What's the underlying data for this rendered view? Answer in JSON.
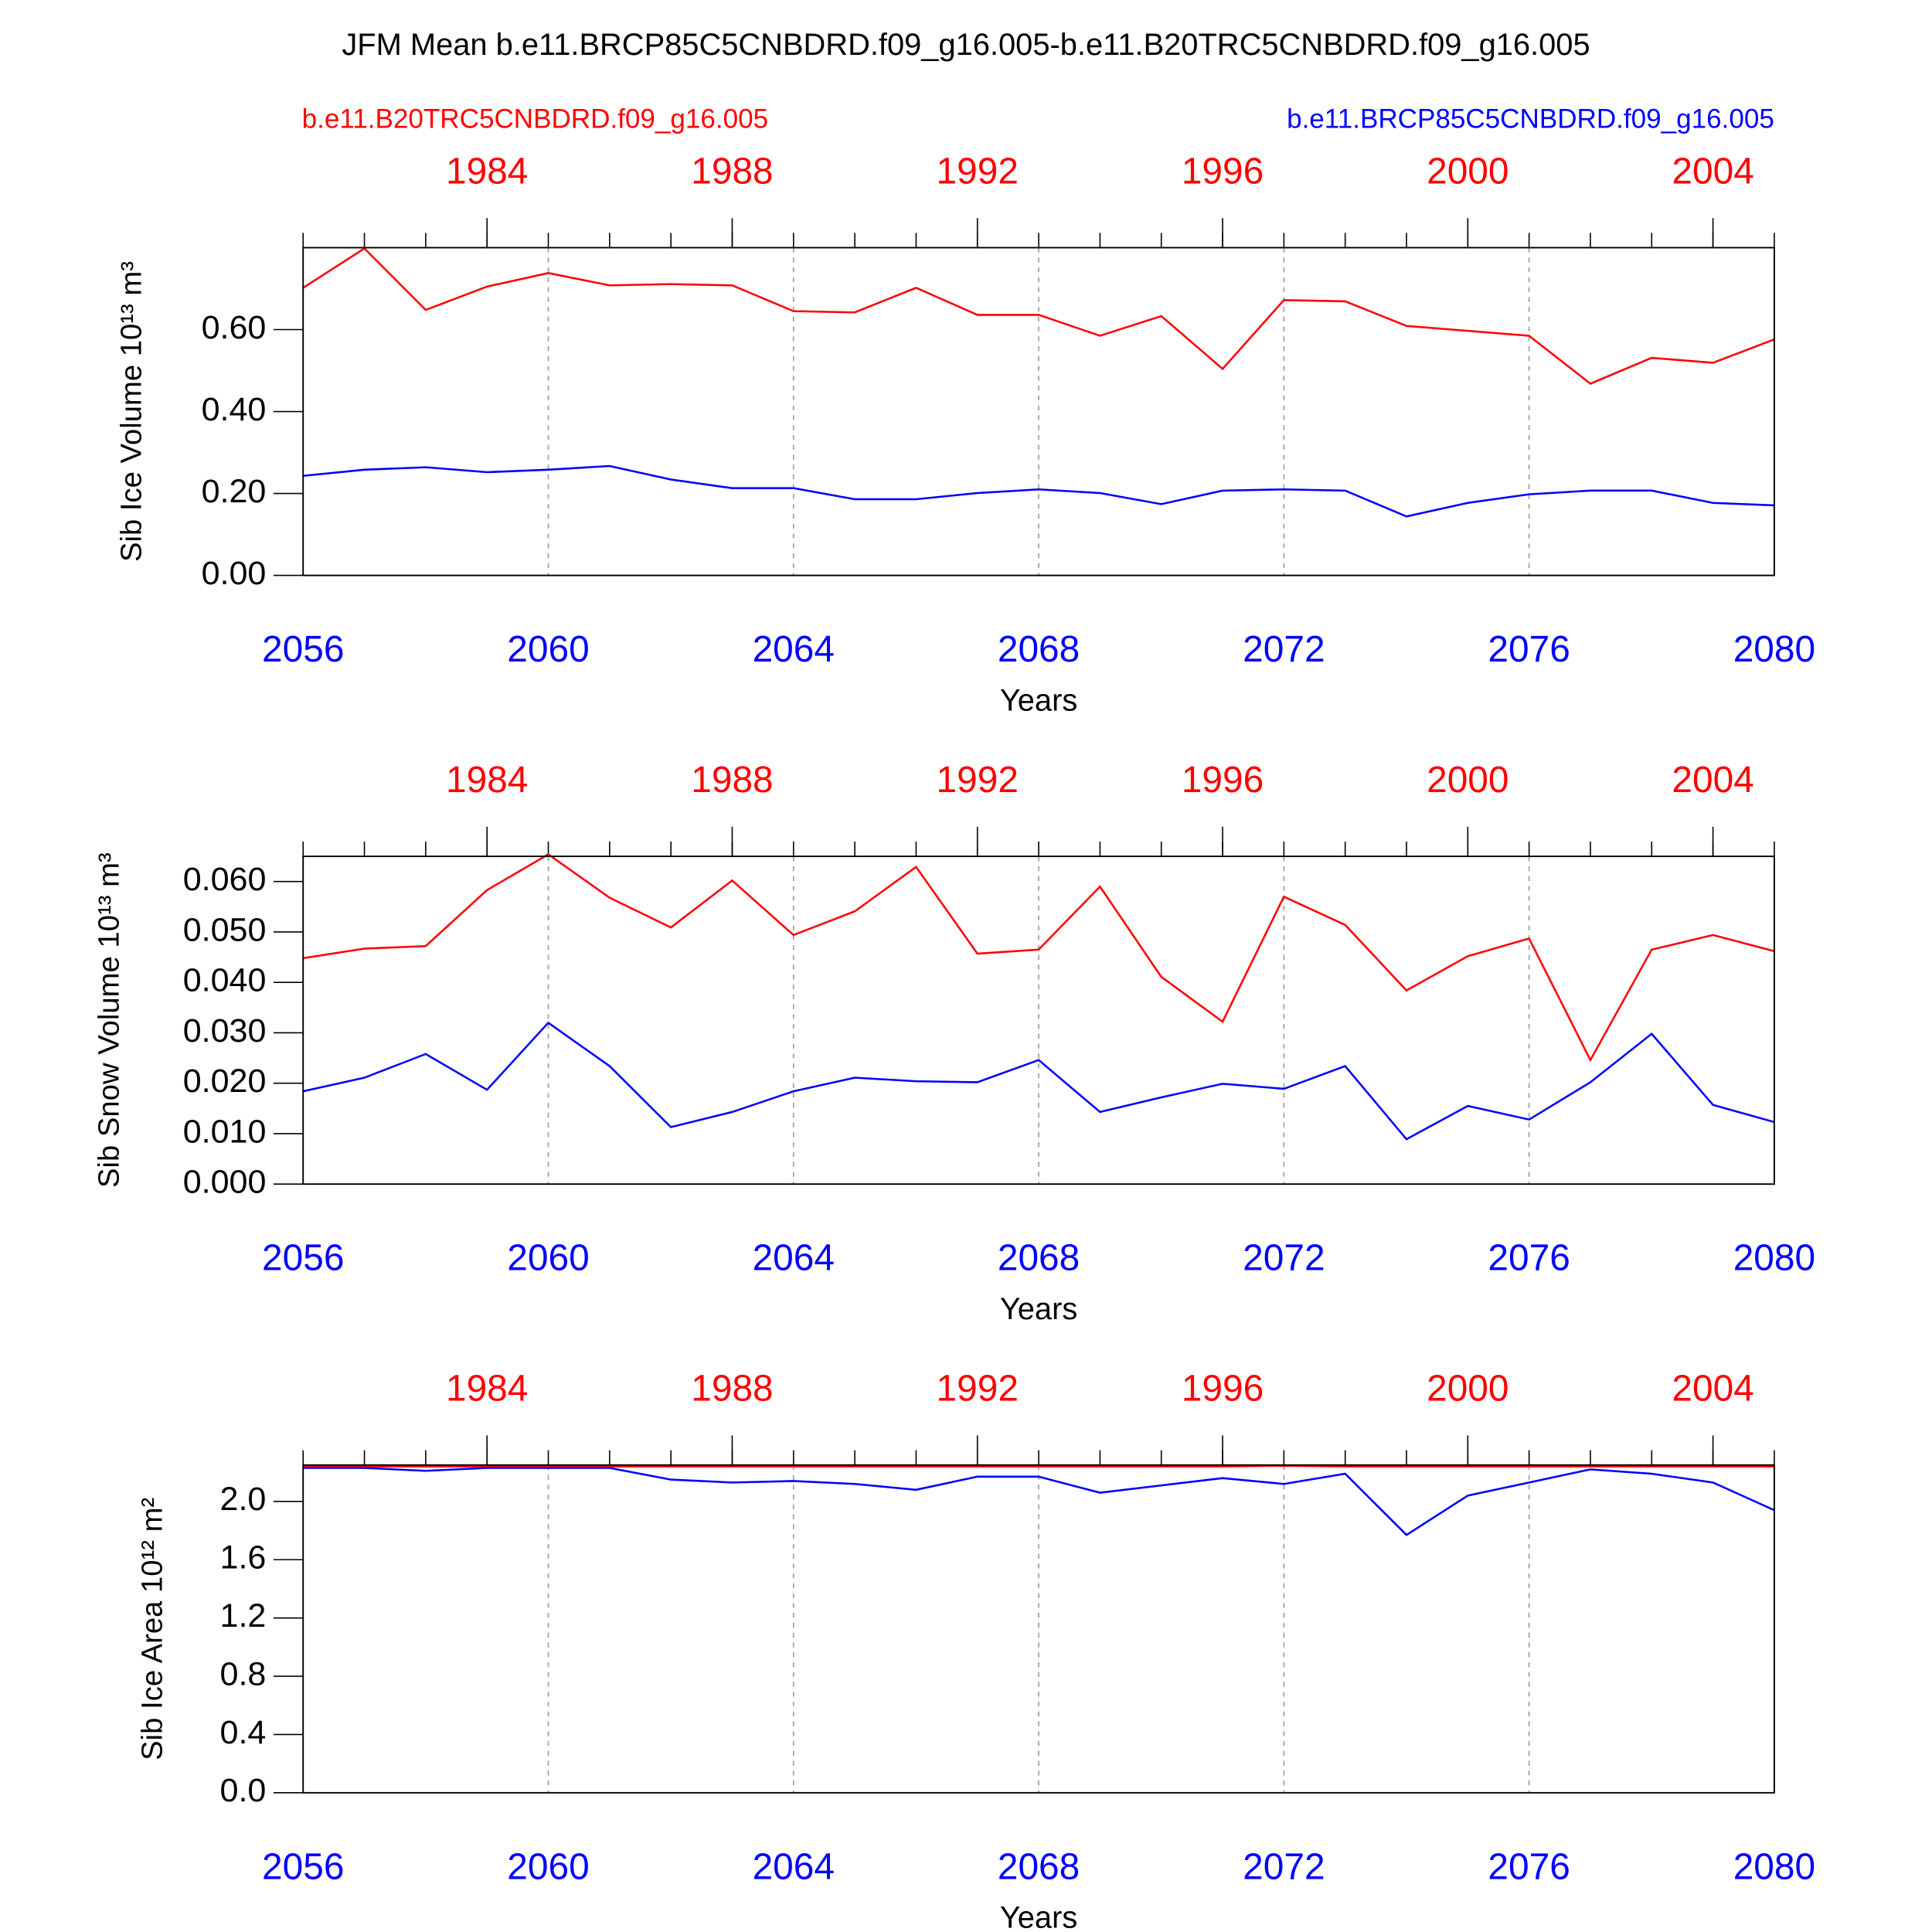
{
  "title": "JFM Mean b.e11.BRCP85C5CNBDRD.f09_g16.005-b.e11.B20TRC5CNBDRD.f09_g16.005",
  "chart_data": [
    {
      "type": "line",
      "ylabel": "Sib Ice Volume 10¹³ m³",
      "xlabel": "Years",
      "grid": "x",
      "x": [
        2056,
        2057,
        2058,
        2059,
        2060,
        2061,
        2062,
        2063,
        2064,
        2065,
        2066,
        2067,
        2068,
        2069,
        2070,
        2071,
        2072,
        2073,
        2074,
        2075,
        2076,
        2077,
        2078,
        2079,
        2080
      ],
      "xlim": [
        2056,
        2080
      ],
      "xticks": [
        2056,
        2060,
        2064,
        2068,
        2072,
        2076,
        2080
      ],
      "x2lim": [
        1981,
        2005
      ],
      "x2ticks": [
        1984,
        1988,
        1992,
        1996,
        2000,
        2004
      ],
      "ylim": [
        0,
        0.8
      ],
      "yticks": [
        {
          "value": 0,
          "label": "0.00"
        },
        {
          "value": 0.2,
          "label": "0.20"
        },
        {
          "value": 0.4,
          "label": "0.40"
        },
        {
          "value": 0.6,
          "label": "0.60"
        }
      ],
      "series": [
        {
          "name": "b.e11.B20TRC5CNBDRD.f09_g16.005",
          "color": "#ff0000",
          "values": [
            0.702,
            0.798,
            0.648,
            0.705,
            0.738,
            0.708,
            0.711,
            0.708,
            0.645,
            0.642,
            0.702,
            0.636,
            0.636,
            0.585,
            0.633,
            0.504,
            0.672,
            0.669,
            0.609,
            0.597,
            0.585,
            0.468,
            0.531,
            0.519,
            0.576
          ]
        },
        {
          "name": "b.e11.BRCP85C5CNBDRD.f09_g16.005",
          "color": "#0000ff",
          "values": [
            0.243,
            0.258,
            0.264,
            0.252,
            0.258,
            0.267,
            0.234,
            0.213,
            0.213,
            0.186,
            0.186,
            0.201,
            0.21,
            0.201,
            0.174,
            0.207,
            0.21,
            0.207,
            0.144,
            0.177,
            0.198,
            0.207,
            0.207,
            0.177,
            0.171
          ]
        }
      ]
    },
    {
      "type": "line",
      "ylabel": "Sib Snow Volume 10¹³ m³",
      "xlabel": "Years",
      "grid": "x",
      "x": [
        2056,
        2057,
        2058,
        2059,
        2060,
        2061,
        2062,
        2063,
        2064,
        2065,
        2066,
        2067,
        2068,
        2069,
        2070,
        2071,
        2072,
        2073,
        2074,
        2075,
        2076,
        2077,
        2078,
        2079,
        2080
      ],
      "xlim": [
        2056,
        2080
      ],
      "xticks": [
        2056,
        2060,
        2064,
        2068,
        2072,
        2076,
        2080
      ],
      "x2lim": [
        1981,
        2005
      ],
      "x2ticks": [
        1984,
        1988,
        1992,
        1996,
        2000,
        2004
      ],
      "ylim": [
        0,
        0.065
      ],
      "yticks": [
        {
          "value": 0,
          "label": "0.000"
        },
        {
          "value": 0.01,
          "label": "0.010"
        },
        {
          "value": 0.02,
          "label": "0.020"
        },
        {
          "value": 0.03,
          "label": "0.030"
        },
        {
          "value": 0.04,
          "label": "0.040"
        },
        {
          "value": 0.05,
          "label": "0.050"
        },
        {
          "value": 0.06,
          "label": "0.060"
        }
      ],
      "series": [
        {
          "color": "#ff0000",
          "values": [
            0.0448,
            0.0467,
            0.0472,
            0.0583,
            0.0654,
            0.0568,
            0.0509,
            0.0602,
            0.0494,
            0.0541,
            0.0629,
            0.0457,
            0.0465,
            0.059,
            0.0411,
            0.0322,
            0.057,
            0.0514,
            0.0384,
            0.0452,
            0.0487,
            0.0246,
            0.0465,
            0.0494,
            0.0462
          ]
        },
        {
          "color": "#0000ff",
          "values": [
            0.0184,
            0.0211,
            0.0258,
            0.0187,
            0.032,
            0.0234,
            0.0113,
            0.0143,
            0.0184,
            0.0211,
            0.0204,
            0.0202,
            0.0246,
            0.0143,
            0.0172,
            0.0199,
            0.0189,
            0.0234,
            0.0089,
            0.0155,
            0.0128,
            0.0202,
            0.0298,
            0.0157,
            0.0123
          ]
        }
      ]
    },
    {
      "type": "line",
      "ylabel": "Sib Ice Area 10¹² m²",
      "xlabel": "Years",
      "grid": "x",
      "x": [
        2056,
        2057,
        2058,
        2059,
        2060,
        2061,
        2062,
        2063,
        2064,
        2065,
        2066,
        2067,
        2068,
        2069,
        2070,
        2071,
        2072,
        2073,
        2074,
        2075,
        2076,
        2077,
        2078,
        2079,
        2080
      ],
      "xlim": [
        2056,
        2080
      ],
      "xticks": [
        2056,
        2060,
        2064,
        2068,
        2072,
        2076,
        2080
      ],
      "x2lim": [
        1981,
        2005
      ],
      "x2ticks": [
        1984,
        1988,
        1992,
        1996,
        2000,
        2004
      ],
      "ylim": [
        0,
        2.25
      ],
      "yticks": [
        {
          "value": 0,
          "label": "0.0"
        },
        {
          "value": 0.4,
          "label": "0.4"
        },
        {
          "value": 0.8,
          "label": "0.8"
        },
        {
          "value": 1.2,
          "label": "1.2"
        },
        {
          "value": 1.6,
          "label": "1.6"
        },
        {
          "value": 2,
          "label": "2.0"
        }
      ],
      "series": [
        {
          "color": "#ff0000",
          "values": [
            2.24,
            2.24,
            2.24,
            2.24,
            2.24,
            2.24,
            2.24,
            2.24,
            2.24,
            2.24,
            2.24,
            2.24,
            2.24,
            2.24,
            2.24,
            2.24,
            2.245,
            2.24,
            2.24,
            2.24,
            2.24,
            2.24,
            2.24,
            2.24,
            2.24
          ]
        },
        {
          "color": "#0000ff",
          "values": [
            2.23,
            2.23,
            2.21,
            2.23,
            2.23,
            2.23,
            2.15,
            2.13,
            2.14,
            2.12,
            2.08,
            2.17,
            2.17,
            2.06,
            2.11,
            2.16,
            2.12,
            2.19,
            1.77,
            2.04,
            2.13,
            2.22,
            2.19,
            2.13,
            1.94
          ]
        }
      ]
    }
  ]
}
